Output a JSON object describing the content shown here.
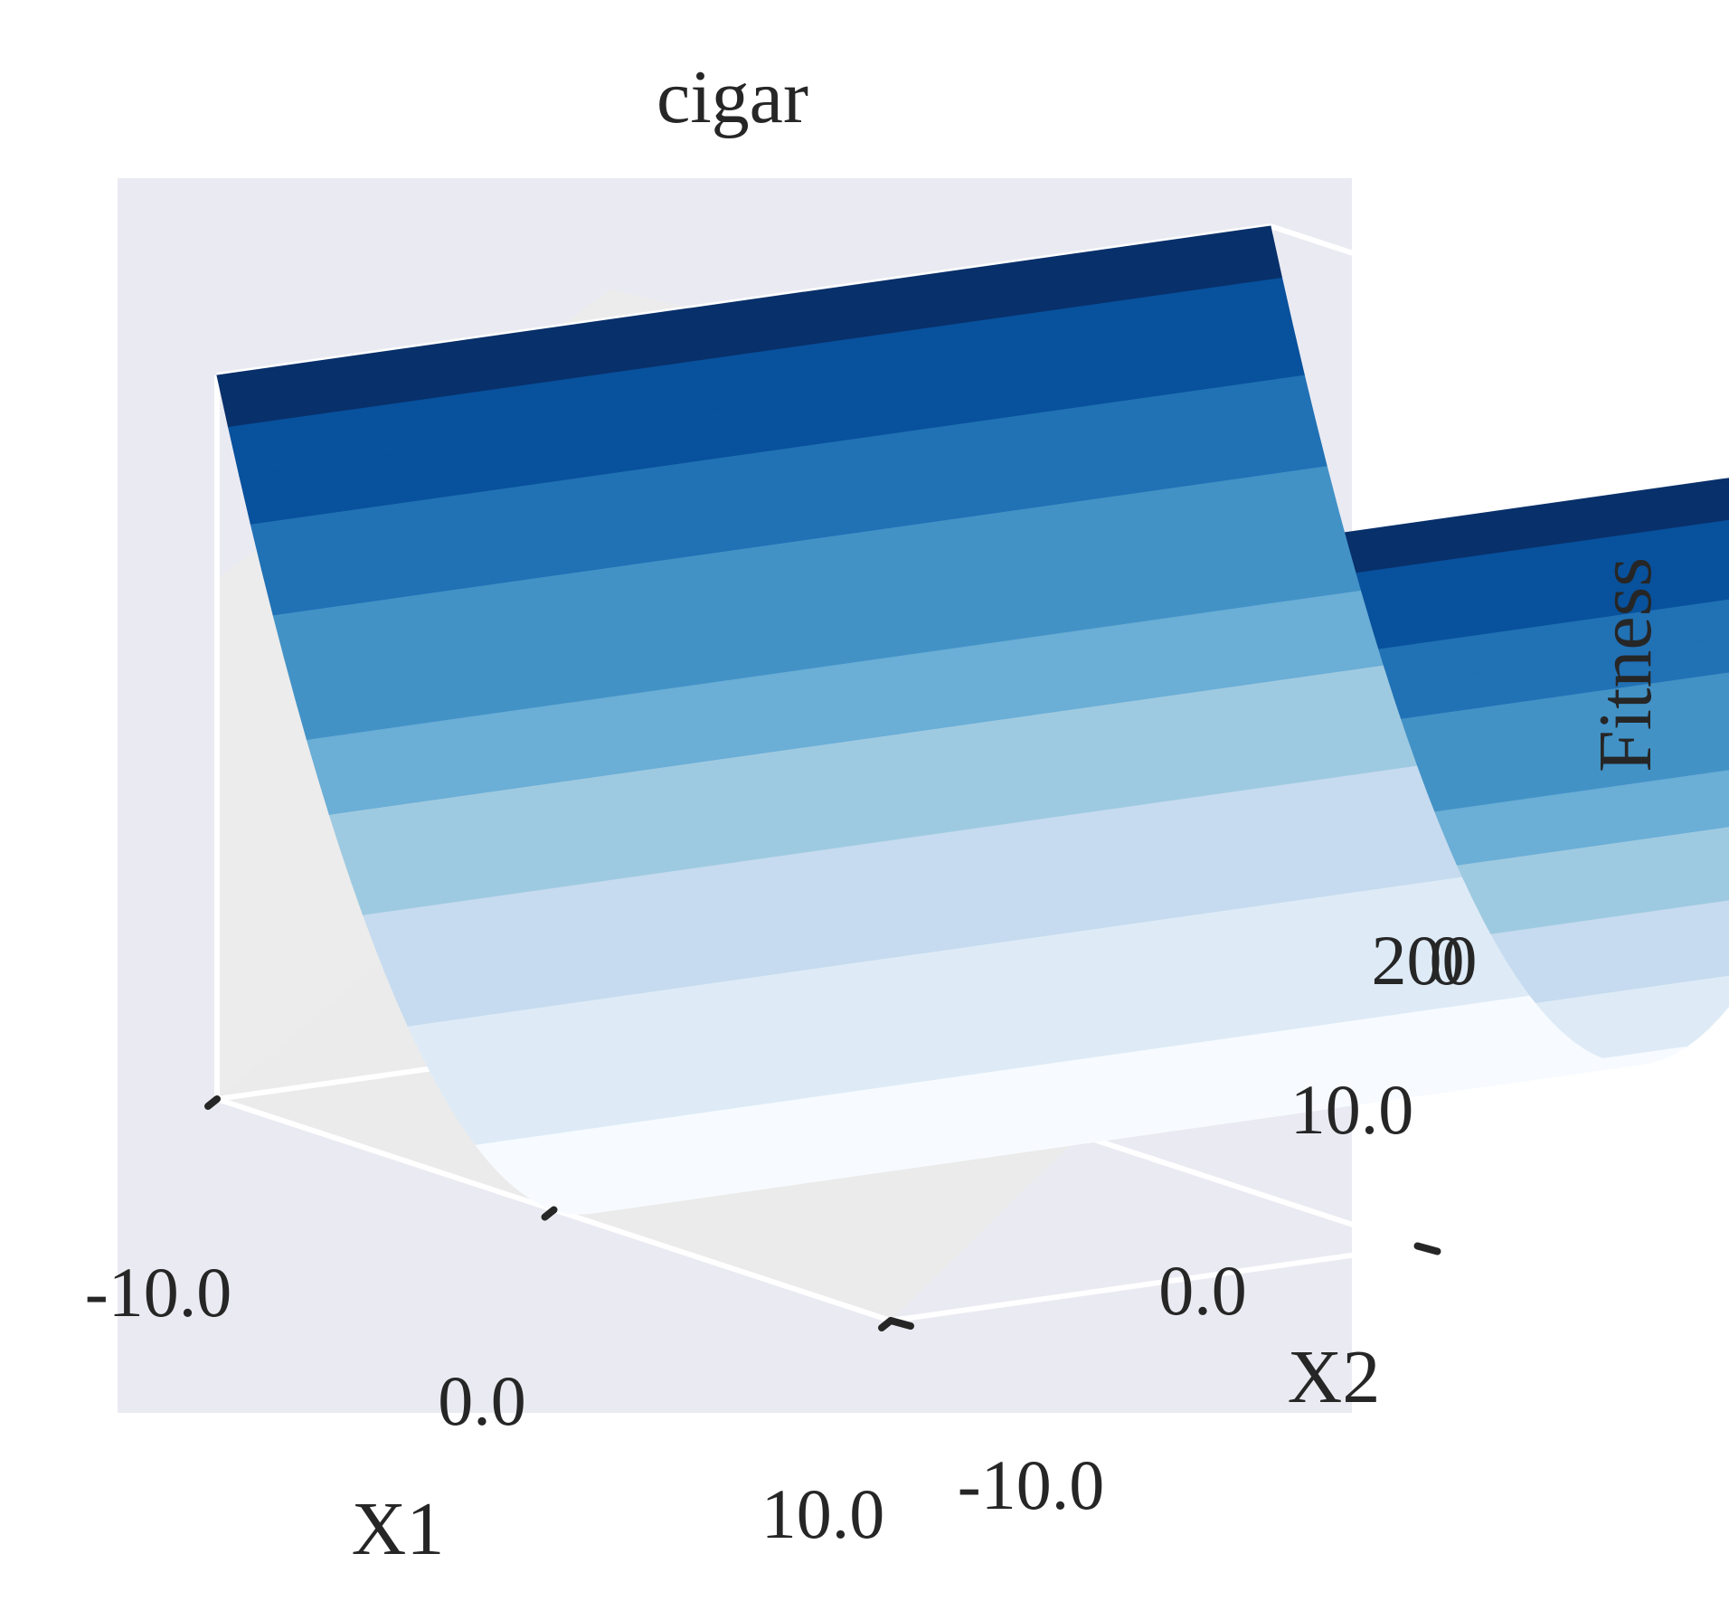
{
  "chart_data": {
    "type": "surface3d",
    "title": "cigar",
    "xlabel": "X1",
    "ylabel": "X2",
    "zlabel": "Fitness",
    "function": "cigar",
    "xlim": [
      -10.0,
      10.0
    ],
    "ylim": [
      -10.0,
      10.0
    ],
    "zlim": [
      0,
      200
    ],
    "x_ticks": [
      "-10.0",
      "0.0",
      "10.0"
    ],
    "y_ticks": [
      "-10.0",
      "0.0",
      "10.0"
    ],
    "z_ticks": [
      "0",
      "200"
    ],
    "colormap": "Blues",
    "colors": {
      "pane": "#eaeaf2",
      "grid": "#ffffff",
      "text": "#262626",
      "ramp": [
        "#f7fbff",
        "#deebf7",
        "#c6dbef",
        "#9ecae1",
        "#6baed6",
        "#4292c6",
        "#2171b5",
        "#08519c",
        "#08306b"
      ]
    },
    "grid": true,
    "surface": {
      "description": "z = x1^2 + 1e6 * x2^2 style ridge; visible cross-section parabola along X1",
      "x1": [
        -10,
        -8,
        -6,
        -4,
        -2,
        0,
        2,
        4,
        6,
        8,
        10
      ],
      "fitness": [
        100,
        64,
        36,
        16,
        4,
        0,
        4,
        16,
        36,
        64,
        100
      ]
    }
  }
}
